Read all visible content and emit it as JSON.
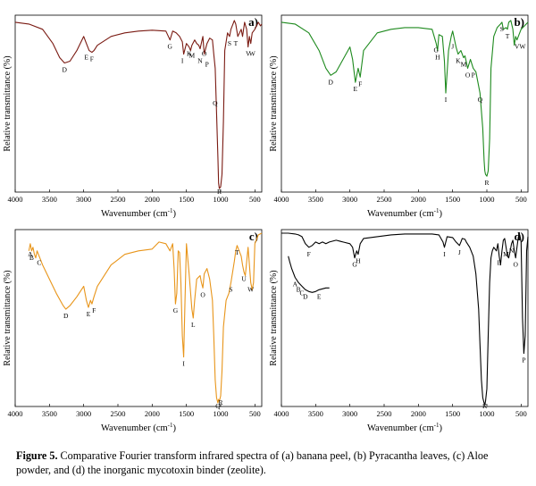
{
  "figure": {
    "caption": {
      "label": "Figure 5.",
      "text": "Comparative Fourier transform infrared spectra of (a) banana peel, (b) Pyracantha leaves, (c) Aloe powder, and (d) the inorganic mycotoxin binder (zeolite)."
    }
  },
  "chart_data": [
    {
      "type": "line",
      "panel_label": "a)",
      "xlabel": "Wavenumber (cm-1)",
      "ylabel": "Relative transmittance (%)",
      "xlim": [
        4000,
        400
      ],
      "x_reversed": true,
      "x_ticks": [
        4000,
        3500,
        3000,
        2500,
        2000,
        1500,
        1000,
        500
      ],
      "y_tick_labels": false,
      "color": "#7a1a12",
      "series": [
        {
          "x": [
            4000,
            3800,
            3600,
            3450,
            3350,
            3280,
            3200,
            3100,
            3000,
            2960,
            2920,
            2880,
            2850,
            2800,
            2600,
            2400,
            2200,
            2000,
            1800,
            1740,
            1700,
            1650,
            1600,
            1560,
            1540,
            1500,
            1460,
            1440,
            1420,
            1380,
            1350,
            1320,
            1300,
            1260,
            1240,
            1200,
            1160,
            1120,
            1100,
            1080,
            1060,
            1040,
            1030,
            1020,
            1000,
            980,
            960,
            940,
            900,
            870,
            850,
            820,
            800,
            780,
            750,
            700,
            680,
            650,
            620,
            600,
            580,
            560,
            540,
            500,
            450,
            420,
            400
          ],
          "y": [
            96,
            95,
            92,
            84,
            76,
            73,
            74,
            80,
            88,
            84,
            80,
            79,
            80,
            83,
            88,
            90,
            91,
            91.5,
            91,
            86,
            91,
            90,
            88,
            85,
            78,
            84,
            82,
            80,
            83,
            86,
            84,
            83,
            81,
            88,
            78,
            84,
            87,
            86,
            78,
            70,
            45,
            20,
            5,
            2,
            3,
            10,
            40,
            80,
            90,
            88,
            92,
            95,
            97,
            95,
            88,
            92,
            88,
            96,
            92,
            82,
            88,
            84,
            90,
            92,
            96,
            94,
            95
          ]
        }
      ],
      "annotations": [
        {
          "label": "D",
          "x": 3280,
          "y": 73
        },
        {
          "label": "E",
          "x": 2960,
          "y": 80
        },
        {
          "label": "F",
          "x": 2880,
          "y": 79
        },
        {
          "label": "G",
          "x": 1740,
          "y": 86
        },
        {
          "label": "I",
          "x": 1560,
          "y": 78
        },
        {
          "label": "K",
          "x": 1460,
          "y": 82
        },
        {
          "label": "M",
          "x": 1420,
          "y": 81
        },
        {
          "label": "N",
          "x": 1300,
          "y": 78
        },
        {
          "label": "O",
          "x": 1240,
          "y": 82
        },
        {
          "label": "P",
          "x": 1200,
          "y": 76
        },
        {
          "label": "Q",
          "x": 1080,
          "y": 54
        },
        {
          "label": "R",
          "x": 1020,
          "y": 2
        },
        {
          "label": "S",
          "x": 870,
          "y": 88
        },
        {
          "label": "T",
          "x": 780,
          "y": 88
        },
        {
          "label": "V",
          "x": 600,
          "y": 82
        },
        {
          "label": "W",
          "x": 540,
          "y": 82
        }
      ]
    },
    {
      "type": "line",
      "panel_label": "b)",
      "xlabel": "Wavenumber (cm-1)",
      "ylabel": "Relative transmittance (%)",
      "xlim": [
        4000,
        400
      ],
      "x_reversed": true,
      "x_ticks": [
        4000,
        3500,
        3000,
        2500,
        2000,
        1500,
        1000,
        500
      ],
      "y_tick_labels": false,
      "color": "#1e8a1e",
      "series": [
        {
          "x": [
            4000,
            3800,
            3600,
            3450,
            3350,
            3280,
            3200,
            3100,
            3000,
            2960,
            2920,
            2880,
            2850,
            2800,
            2600,
            2400,
            2200,
            2000,
            1800,
            1740,
            1720,
            1700,
            1650,
            1620,
            1600,
            1560,
            1520,
            1500,
            1450,
            1420,
            1380,
            1340,
            1320,
            1280,
            1240,
            1200,
            1160,
            1100,
            1060,
            1040,
            1030,
            1020,
            1000,
            980,
            960,
            940,
            900,
            850,
            800,
            780,
            760,
            720,
            700,
            680,
            650,
            620,
            600,
            580,
            560,
            500,
            450,
            400
          ],
          "y": [
            96,
            95,
            90,
            80,
            70,
            66,
            68,
            75,
            82,
            75,
            62,
            70,
            65,
            80,
            90,
            92,
            93,
            93,
            92,
            84,
            80,
            89,
            88,
            74,
            56,
            80,
            88,
            91,
            82,
            78,
            80,
            76,
            77,
            70,
            75,
            70,
            68,
            56,
            36,
            18,
            12,
            10,
            9,
            12,
            30,
            70,
            88,
            93,
            95,
            96,
            92,
            93,
            92,
            96,
            97,
            92,
            83,
            88,
            86,
            92,
            94,
            96
          ]
        }
      ],
      "annotations": [
        {
          "label": "D",
          "x": 3280,
          "y": 66
        },
        {
          "label": "E",
          "x": 2920,
          "y": 62
        },
        {
          "label": "F",
          "x": 2850,
          "y": 65
        },
        {
          "label": "G",
          "x": 1740,
          "y": 84
        },
        {
          "label": "H",
          "x": 1720,
          "y": 80
        },
        {
          "label": "I",
          "x": 1600,
          "y": 56
        },
        {
          "label": "J",
          "x": 1500,
          "y": 86
        },
        {
          "label": "K",
          "x": 1420,
          "y": 78
        },
        {
          "label": "M",
          "x": 1340,
          "y": 76
        },
        {
          "label": "O",
          "x": 1280,
          "y": 70
        },
        {
          "label": "P",
          "x": 1200,
          "y": 70
        },
        {
          "label": "Q",
          "x": 1100,
          "y": 56
        },
        {
          "label": "R",
          "x": 1000,
          "y": 9
        },
        {
          "label": "S",
          "x": 780,
          "y": 96
        },
        {
          "label": "T",
          "x": 700,
          "y": 92
        },
        {
          "label": "V",
          "x": 560,
          "y": 86
        },
        {
          "label": "W",
          "x": 480,
          "y": 86
        }
      ]
    },
    {
      "type": "line",
      "panel_label": "c)",
      "xlabel": "Wavenumber (cm-1)",
      "ylabel": "Relative transmittance (%)",
      "xlim": [
        4000,
        400
      ],
      "x_reversed": true,
      "x_ticks": [
        4000,
        3500,
        3000,
        2500,
        2000,
        1500,
        1000,
        500
      ],
      "y_tick_labels": false,
      "color": "#e8951a",
      "series": [
        {
          "x": [
            3800,
            3780,
            3760,
            3740,
            3720,
            3700,
            3680,
            3650,
            3600,
            3500,
            3400,
            3300,
            3260,
            3200,
            3100,
            3000,
            2960,
            2930,
            2900,
            2880,
            2850,
            2800,
            2600,
            2400,
            2200,
            2000,
            1900,
            1800,
            1740,
            1700,
            1680,
            1660,
            1640,
            1620,
            1600,
            1580,
            1560,
            1540,
            1520,
            1500,
            1460,
            1420,
            1400,
            1380,
            1350,
            1300,
            1280,
            1260,
            1240,
            1200,
            1160,
            1120,
            1100,
            1080,
            1060,
            1040,
            1030,
            1020,
            1000,
            980,
            960,
            920,
            880,
            850,
            800,
            780,
            760,
            740,
            700,
            680,
            660,
            640,
            600,
            560,
            540,
            520,
            500,
            450,
            400
          ],
          "y": [
            88,
            92,
            88,
            90,
            86,
            84,
            88,
            85,
            80,
            72,
            64,
            57,
            55,
            57,
            62,
            68,
            60,
            56,
            60,
            58,
            62,
            68,
            80,
            86,
            88,
            89,
            93,
            92,
            88,
            92,
            78,
            58,
            64,
            88,
            87,
            70,
            40,
            28,
            60,
            92,
            75,
            55,
            50,
            60,
            72,
            74,
            70,
            67,
            75,
            78,
            72,
            60,
            40,
            15,
            5,
            2,
            4,
            3,
            6,
            20,
            45,
            60,
            64,
            70,
            82,
            88,
            91,
            89,
            85,
            80,
            76,
            74,
            90,
            70,
            66,
            70,
            92,
            97,
            98
          ]
        }
      ],
      "annotations": [
        {
          "label": "A",
          "x": 3780,
          "y": 90
        },
        {
          "label": "B",
          "x": 3760,
          "y": 88
        },
        {
          "label": "C",
          "x": 3650,
          "y": 85
        },
        {
          "label": "D",
          "x": 3260,
          "y": 55
        },
        {
          "label": "E",
          "x": 2930,
          "y": 56
        },
        {
          "label": "F",
          "x": 2850,
          "y": 58
        },
        {
          "label": "G",
          "x": 1660,
          "y": 58
        },
        {
          "label": "I",
          "x": 1540,
          "y": 28
        },
        {
          "label": "L",
          "x": 1400,
          "y": 50
        },
        {
          "label": "O",
          "x": 1260,
          "y": 67
        },
        {
          "label": "Q",
          "x": 1040,
          "y": 2
        },
        {
          "label": "R",
          "x": 1000,
          "y": 6
        },
        {
          "label": "S",
          "x": 850,
          "y": 70
        },
        {
          "label": "T",
          "x": 760,
          "y": 91
        },
        {
          "label": "U",
          "x": 660,
          "y": 76
        },
        {
          "label": "W",
          "x": 560,
          "y": 70
        }
      ]
    },
    {
      "type": "line",
      "panel_label": "d)",
      "xlabel": "Wavenumber (cm-1)",
      "ylabel": "Relative transmittance (%)",
      "xlim": [
        4000,
        400
      ],
      "x_reversed": true,
      "x_ticks": [
        4000,
        3500,
        3000,
        2500,
        2000,
        1500,
        1000,
        500
      ],
      "y_tick_labels": false,
      "color": "#000000",
      "series": [
        {
          "x": [
            4000,
            3900,
            3800,
            3750,
            3700,
            3650,
            3600,
            3550,
            3500,
            3450,
            3400,
            3350,
            3300,
            3200,
            3100,
            3000,
            2960,
            2930,
            2900,
            2880,
            2850,
            2800,
            2600,
            2400,
            2200,
            2000,
            1800,
            1700,
            1640,
            1620,
            1600,
            1580,
            1500,
            1450,
            1400,
            1380,
            1360,
            1320,
            1300,
            1250,
            1200,
            1160,
            1120,
            1100,
            1080,
            1060,
            1040,
            1030,
            1020,
            1000,
            980,
            960,
            940,
            920,
            900,
            880,
            860,
            840,
            820,
            800,
            780,
            760,
            740,
            720,
            700,
            680,
            660,
            640,
            620,
            600,
            580,
            560,
            540,
            520,
            500,
            480,
            460,
            440,
            420,
            400
          ],
          "y": [
            98,
            98,
            97.5,
            97,
            96,
            92,
            90,
            91,
            93,
            92,
            93,
            92,
            93,
            94,
            93,
            92,
            90,
            84,
            88,
            86,
            92,
            95,
            96,
            97,
            97.5,
            97.5,
            97.5,
            97,
            93,
            90,
            93,
            96,
            95.5,
            93,
            91,
            93,
            95,
            94.5,
            93,
            90,
            85,
            75,
            55,
            35,
            15,
            5,
            2,
            1,
            3,
            10,
            40,
            70,
            84,
            88,
            90,
            89,
            88,
            92,
            85,
            80,
            88,
            94,
            95,
            90,
            85,
            84,
            88,
            92,
            94,
            88,
            84,
            90,
            96,
            97,
            93,
            50,
            30,
            40,
            88,
            96
          ]
        },
        {
          "x": [
            3900,
            3880,
            3850,
            3800,
            3750,
            3700,
            3650,
            3600,
            3550,
            3500,
            3450,
            3400,
            3350,
            3300
          ],
          "y": [
            85,
            82,
            78,
            73,
            70,
            68,
            66,
            65,
            64.5,
            65,
            66,
            66.5,
            67,
            67
          ]
        }
      ],
      "annotations": [
        {
          "label": "F",
          "x": 3600,
          "y": 90
        },
        {
          "label": "G",
          "x": 2930,
          "y": 84
        },
        {
          "label": "H",
          "x": 2880,
          "y": 86
        },
        {
          "label": "I",
          "x": 1620,
          "y": 90
        },
        {
          "label": "J",
          "x": 1400,
          "y": 91
        },
        {
          "label": "K",
          "x": 1030,
          "y": 1
        },
        {
          "label": "L",
          "x": 820,
          "y": 85
        },
        {
          "label": "M",
          "x": 720,
          "y": 90
        },
        {
          "label": "N",
          "x": 640,
          "y": 92
        },
        {
          "label": "O",
          "x": 580,
          "y": 84
        },
        {
          "label": "P",
          "x": 460,
          "y": 30
        },
        {
          "label": "A",
          "x": 3800,
          "y": 73
        },
        {
          "label": "B",
          "x": 3750,
          "y": 70
        },
        {
          "label": "C",
          "x": 3700,
          "y": 68
        },
        {
          "label": "D",
          "x": 3650,
          "y": 66
        },
        {
          "label": "E",
          "x": 3450,
          "y": 66
        }
      ]
    }
  ]
}
